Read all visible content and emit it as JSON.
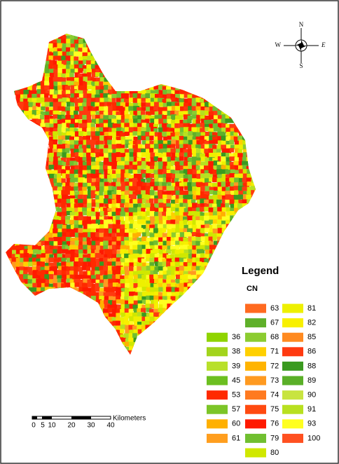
{
  "compass": {
    "north": "N",
    "south": "S",
    "east": "E",
    "west": "W"
  },
  "legend": {
    "title": "Legend",
    "field": "CN",
    "columns": [
      [
        {
          "label": "36",
          "color": "#8fd400"
        },
        {
          "label": "38",
          "color": "#a2d41c"
        },
        {
          "label": "39",
          "color": "#b8e02a"
        },
        {
          "label": "45",
          "color": "#6cbf20"
        },
        {
          "label": "53",
          "color": "#ff2a00"
        },
        {
          "label": "57",
          "color": "#7cc528"
        },
        {
          "label": "60",
          "color": "#ffb000"
        },
        {
          "label": "61",
          "color": "#ff9e1e"
        }
      ],
      [
        {
          "label": "63",
          "color": "#ff6a20"
        },
        {
          "label": "67",
          "color": "#5fb02a"
        },
        {
          "label": "68",
          "color": "#8ccc30"
        },
        {
          "label": "71",
          "color": "#ffd000"
        },
        {
          "label": "72",
          "color": "#ffb400"
        },
        {
          "label": "73",
          "color": "#ff9a20"
        },
        {
          "label": "74",
          "color": "#ff7a20"
        },
        {
          "label": "75",
          "color": "#ff4a10"
        },
        {
          "label": "76",
          "color": "#ff1a00"
        },
        {
          "label": "79",
          "color": "#70bf30"
        },
        {
          "label": "80",
          "color": "#d0e800"
        }
      ],
      [
        {
          "label": "81",
          "color": "#eef000"
        },
        {
          "label": "82",
          "color": "#f8f000"
        },
        {
          "label": "85",
          "color": "#ff8a20"
        },
        {
          "label": "86",
          "color": "#ff3a10"
        },
        {
          "label": "88",
          "color": "#3a9a20"
        },
        {
          "label": "89",
          "color": "#5aaf28"
        },
        {
          "label": "90",
          "color": "#c8e440"
        },
        {
          "label": "91",
          "color": "#b8e020"
        },
        {
          "label": "93",
          "color": "#ffff20"
        },
        {
          "label": "100",
          "color": "#ff5020"
        }
      ]
    ]
  },
  "scale_bar": {
    "ticks": [
      "0",
      "5",
      "10",
      "20",
      "30",
      "40"
    ],
    "unit": "Kilometers"
  }
}
